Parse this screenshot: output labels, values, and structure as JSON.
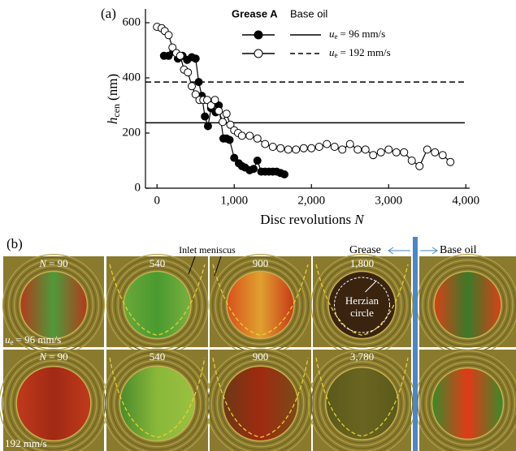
{
  "chart_data": {
    "type": "line",
    "label": "(a)",
    "ylabel": {
      "symbol": "h",
      "subscript": "cen",
      "unit": "(nm)"
    },
    "xlabel": {
      "text": "Disc revolutions",
      "symbol": "N"
    },
    "xlim": [
      -150,
      4050
    ],
    "ylim": [
      0,
      650
    ],
    "xticks": [
      0,
      {
        "value": 1000,
        "label": "1,000"
      },
      {
        "value": 2000,
        "label": "2,000"
      },
      {
        "value": 3000,
        "label": "3,000"
      },
      {
        "value": 4000,
        "label": "4,000"
      }
    ],
    "yticks": [
      0,
      200,
      400,
      600
    ],
    "legend": {
      "headers": [
        "Grease A",
        "Base oil"
      ],
      "rows": [
        {
          "symbol": "u",
          "subscript": "e",
          "text": "= 96 mm/s"
        },
        {
          "symbol": "u",
          "subscript": "e",
          "text": "= 192 mm/s"
        }
      ]
    },
    "series": [
      {
        "color": "#000000",
        "marker": "filled",
        "x": [
          90,
          150,
          210,
          270,
          330,
          390,
          450,
          500,
          540,
          580,
          620,
          660,
          700,
          760,
          800,
          860,
          900,
          940,
          1000,
          1060,
          1100,
          1140,
          1200,
          1250,
          1300,
          1350,
          1400,
          1450,
          1500,
          1550,
          1600,
          1650
        ],
        "values": [
          480,
          480,
          495,
          470,
          480,
          465,
          475,
          470,
          385,
          335,
          260,
          225,
          290,
          275,
          300,
          180,
          180,
          175,
          110,
          90,
          80,
          75,
          65,
          70,
          100,
          60,
          60,
          60,
          60,
          60,
          55,
          50
        ]
      },
      {
        "color": "#000000",
        "marker": "open",
        "x": [
          0,
          60,
          100,
          150,
          200,
          250,
          300,
          350,
          400,
          450,
          500,
          550,
          600,
          650,
          700,
          750,
          800,
          850,
          900,
          950,
          1000,
          1050,
          1100,
          1200,
          1300,
          1400,
          1500,
          1600,
          1700,
          1800,
          1900,
          2000,
          2100,
          2200,
          2300,
          2400,
          2500,
          2600,
          2700,
          2800,
          2900,
          3000,
          3100,
          3200,
          3300,
          3400,
          3500,
          3600,
          3700,
          3800
        ],
        "values": [
          585,
          580,
          570,
          555,
          510,
          490,
          480,
          430,
          420,
          370,
          340,
          320,
          320,
          320,
          300,
          320,
          280,
          240,
          270,
          230,
          210,
          200,
          190,
          190,
          180,
          160,
          150,
          145,
          140,
          140,
          145,
          145,
          150,
          160,
          150,
          140,
          160,
          140,
          140,
          120,
          130,
          140,
          130,
          130,
          100,
          80,
          140,
          130,
          120,
          95
        ]
      }
    ],
    "reference_lines": [
      {
        "value": 237,
        "style": "solid"
      },
      {
        "value": 385,
        "style": "dashed"
      }
    ]
  },
  "panel_b": {
    "label": "(b)",
    "meniscus": "Inlet meniscus",
    "grease": "Grease",
    "base_oil": "Base oil",
    "herzian": [
      "Herzian",
      "circle"
    ],
    "rows": [
      {
        "speed": {
          "symbol": "u",
          "subscript": "e",
          "text": "= 96 mm/s"
        },
        "first": {
          "symbol": "N",
          "text": "= 90"
        },
        "others": [
          "540",
          "900",
          "1,800"
        ]
      },
      {
        "speed": {
          "text": "192 mm/s"
        },
        "first": {
          "symbol": "N",
          "text": "= 90"
        },
        "others": [
          "540",
          "900",
          "3,780"
        ]
      }
    ]
  }
}
